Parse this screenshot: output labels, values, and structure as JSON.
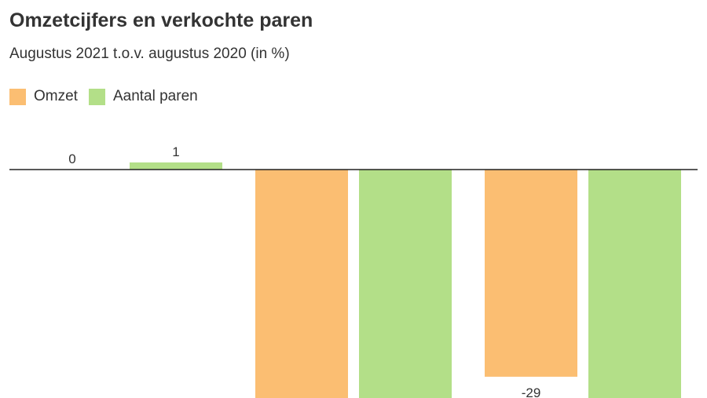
{
  "title": "Omzetcijfers en verkochte paren",
  "subtitle": "Augustus 2021 t.o.v. augustus 2020 (in %)",
  "legend": [
    {
      "label": "Omzet",
      "color": "#fbbe72"
    },
    {
      "label": "Aantal paren",
      "color": "#b3df88"
    }
  ],
  "chart_data": {
    "type": "bar",
    "title": "Omzetcijfers en verkochte paren",
    "subtitle": "Augustus 2021 t.o.v. augustus 2020 (in %)",
    "categories": [
      "",
      "",
      ""
    ],
    "series": [
      {
        "name": "Omzet",
        "color": "#fbbe72",
        "values": [
          0,
          -32,
          -29
        ],
        "labels": [
          "0",
          "",
          "-29"
        ]
      },
      {
        "name": "Aantal paren",
        "color": "#b3df88",
        "values": [
          1,
          -32,
          -32
        ],
        "labels": [
          "1",
          "",
          ""
        ]
      }
    ],
    "ylim": [
      -32,
      1
    ],
    "grid": false,
    "legend_position": "top-left"
  }
}
